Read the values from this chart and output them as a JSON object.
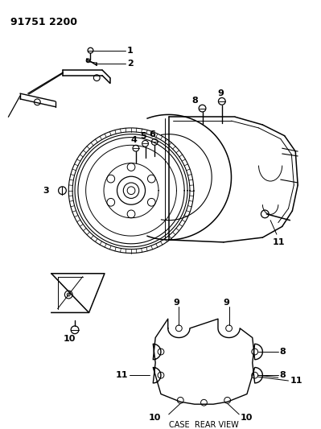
{
  "title": "91751 2200",
  "background_color": "#ffffff",
  "text_color": "#000000",
  "line_color": "#000000",
  "figsize": [
    3.99,
    5.33
  ],
  "dpi": 100,
  "case_rear_view_label": "CASE  REAR VIEW",
  "font_size_title": 9,
  "font_size_label": 7
}
